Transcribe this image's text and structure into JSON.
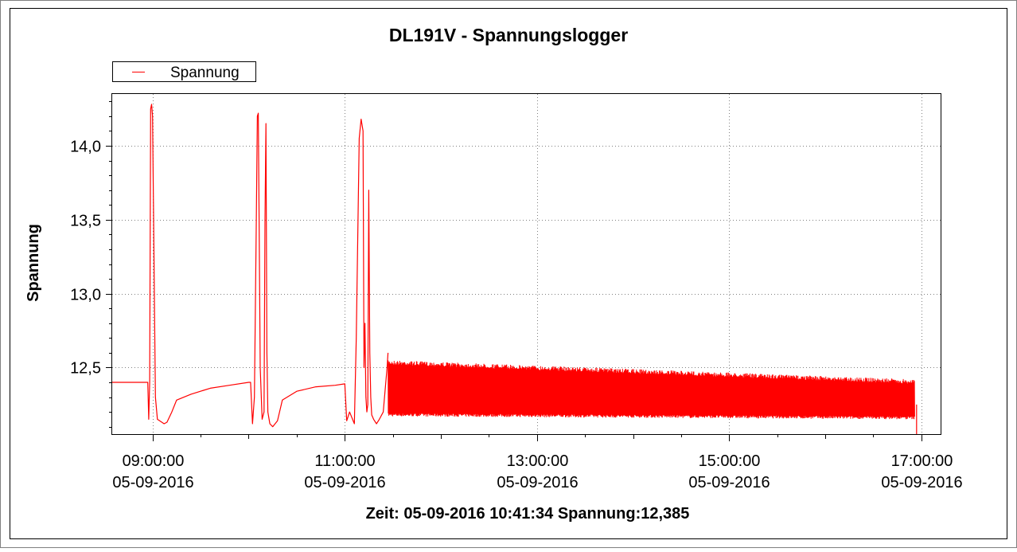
{
  "chart_data": {
    "type": "line",
    "title": "DL191V - Spannungslogger",
    "ylabel": "Spannung",
    "xlabel": "",
    "xunit": "hours of day (05-09-2016)",
    "ylim": [
      12.05,
      14.35
    ],
    "xlim": [
      8.58,
      17.2
    ],
    "grid": true,
    "legend_position": "top-left",
    "colors": {
      "series": "#ff0000",
      "grid": "#808080",
      "frame": "#000000"
    },
    "yticks": [
      {
        "value": 12.5,
        "label": "12,5"
      },
      {
        "value": 13.0,
        "label": "13,0"
      },
      {
        "value": 13.5,
        "label": "13,5"
      },
      {
        "value": 14.0,
        "label": "14,0"
      }
    ],
    "xticks": [
      {
        "value": 9,
        "time": "09:00:00",
        "date": "05-09-2016"
      },
      {
        "value": 11,
        "time": "11:00:00",
        "date": "05-09-2016"
      },
      {
        "value": 13,
        "time": "13:00:00",
        "date": "05-09-2016"
      },
      {
        "value": 15,
        "time": "15:00:00",
        "date": "05-09-2016"
      },
      {
        "value": 17,
        "time": "17:00:00",
        "date": "05-09-2016"
      }
    ],
    "series": [
      {
        "name": "Spannung",
        "x": [
          8.58,
          8.95,
          8.96,
          8.97,
          8.98,
          8.99,
          9.0,
          9.03,
          9.05,
          9.12,
          9.15,
          9.2,
          9.25,
          9.4,
          9.6,
          9.8,
          10.0,
          10.02,
          10.04,
          10.06,
          10.08,
          10.09,
          10.1,
          10.12,
          10.14,
          10.16,
          10.17,
          10.18,
          10.19,
          10.2,
          10.22,
          10.25,
          10.3,
          10.35,
          10.5,
          10.7,
          10.9,
          11.0,
          11.02,
          11.05,
          11.1,
          11.12,
          11.15,
          11.17,
          11.19,
          11.2,
          11.21,
          11.22,
          11.23,
          11.24,
          11.25,
          11.26,
          11.27,
          11.28,
          11.3,
          11.33,
          11.36,
          11.4,
          11.42,
          11.44,
          11.45
        ],
        "y": [
          12.4,
          12.4,
          12.15,
          12.4,
          14.25,
          14.28,
          14.2,
          12.3,
          12.15,
          12.12,
          12.13,
          12.2,
          12.28,
          12.32,
          12.36,
          12.38,
          12.4,
          12.4,
          12.12,
          12.3,
          13.5,
          14.2,
          14.22,
          12.5,
          12.15,
          12.2,
          13.5,
          14.15,
          12.6,
          12.2,
          12.12,
          12.1,
          12.14,
          12.28,
          12.34,
          12.37,
          12.38,
          12.39,
          12.14,
          12.2,
          12.12,
          12.7,
          14.05,
          14.18,
          14.1,
          12.5,
          12.8,
          12.3,
          12.2,
          12.25,
          13.7,
          12.6,
          12.3,
          12.18,
          12.15,
          12.12,
          12.15,
          12.2,
          12.35,
          12.5,
          12.6
        ]
      }
    ],
    "noise_band": {
      "x_start": 11.45,
      "x_end": 16.93,
      "upper_start": 12.55,
      "upper_end": 12.42,
      "lower_start": 12.17,
      "lower_end": 12.15,
      "drop_at": 16.95,
      "drop_to": 12.05
    }
  },
  "status": {
    "text": "Zeit: 05-09-2016 10:41:34 Spannung:12,385"
  }
}
